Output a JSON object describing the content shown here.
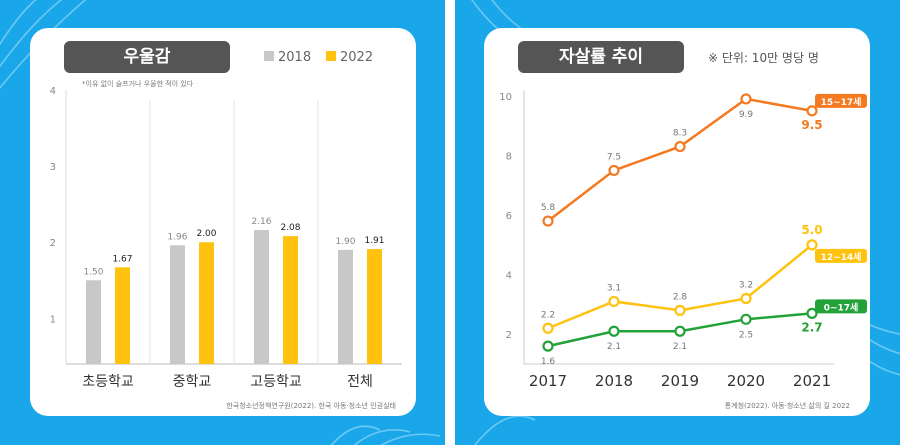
{
  "colors": {
    "background": "#1aa7ea",
    "bar_2018": "#c8c8c8",
    "bar_2022": "#ffc20e",
    "line_15_17": "#f47920",
    "line_12_14": "#ffc20e",
    "line_0_17": "#23a23a",
    "pill": "#555555"
  },
  "left_chart": {
    "title": "우울감",
    "legend": [
      "2018",
      "2022"
    ],
    "note": "*이유 없이 슬프거나 우울한 적이 있다",
    "source": "한국청소년정책연구원(2022). 한국 아동·청소년 인권실태"
  },
  "right_chart": {
    "title": "자살률 추이",
    "unit_note": "※ 단위: 10만 명당 명",
    "source": "통계청(2022). 아동·청소년 삶의 질 2022"
  },
  "chart_data": [
    {
      "type": "bar",
      "title": "우울감",
      "categories": [
        "초등학교",
        "중학교",
        "고등학교",
        "전체"
      ],
      "series": [
        {
          "name": "2018",
          "values": [
            1.5,
            1.96,
            2.16,
            1.9
          ],
          "labels": [
            "1.50",
            "1.96",
            "2.16",
            "1.90"
          ]
        },
        {
          "name": "2022",
          "values": [
            1.67,
            2.0,
            2.08,
            1.91
          ],
          "labels": [
            "1.67",
            "2.00",
            "2.08",
            "1.91"
          ]
        }
      ],
      "yticks": [
        "1",
        "2",
        "3",
        "4"
      ],
      "ylim": [
        0.4,
        4
      ],
      "grid": false,
      "legend_position": "top-right"
    },
    {
      "type": "line",
      "title": "자살률 추이",
      "x": [
        "2017",
        "2018",
        "2019",
        "2020",
        "2021"
      ],
      "series": [
        {
          "name": "15~17세",
          "values": [
            5.8,
            7.5,
            8.3,
            9.9,
            9.5
          ],
          "labels": [
            "5.8",
            "7.5",
            "8.3",
            "9.9",
            "9.5"
          ]
        },
        {
          "name": "12~14세",
          "values": [
            2.2,
            3.1,
            2.8,
            3.2,
            5.0
          ],
          "labels": [
            "2.2",
            "3.1",
            "2.8",
            "3.2",
            "5.0"
          ]
        },
        {
          "name": "0~17세",
          "values": [
            1.6,
            2.1,
            2.1,
            2.5,
            2.7
          ],
          "labels": [
            "1.6",
            "2.1",
            "2.1",
            "2.5",
            "2.7"
          ]
        }
      ],
      "yticks": [
        "2",
        "4",
        "6",
        "8",
        "10"
      ],
      "ylim": [
        1.0,
        10.2
      ],
      "grid": false
    }
  ]
}
